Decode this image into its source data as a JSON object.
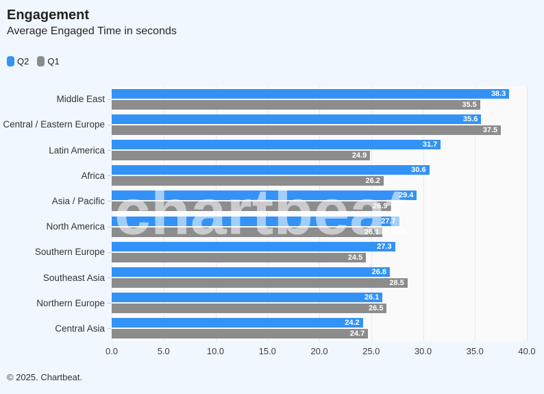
{
  "header": {
    "title": "Engagement",
    "subtitle": "Average Engaged Time in seconds"
  },
  "legend": [
    {
      "label": "Q2",
      "color": "#3392f5"
    },
    {
      "label": "Q1",
      "color": "#8c8c8d"
    }
  ],
  "watermark_text": "chartbeat",
  "footer": {
    "copyright": "© 2025. Chartbeat."
  },
  "colors": {
    "page_background": "#f0f7fe",
    "plot_background": "#fafafa",
    "gridline": "#e8e8e8",
    "q2_bar": "#3392f5",
    "q1_bar": "#8c8c8d",
    "bar_value_text": "#ffffff"
  },
  "chart_data": {
    "type": "bar",
    "orientation": "horizontal",
    "title": "Engagement",
    "subtitle": "Average Engaged Time in seconds",
    "categories": [
      "Middle East",
      "Central / Eastern Europe",
      "Latin America",
      "Africa",
      "Asia / Pacific",
      "North America",
      "Southern Europe",
      "Southeast Asia",
      "Northern Europe",
      "Central Asia"
    ],
    "series": [
      {
        "name": "Q2",
        "color": "#3392f5",
        "values": [
          38.3,
          35.6,
          31.7,
          30.6,
          29.4,
          27.7,
          27.3,
          26.8,
          26.1,
          24.2
        ]
      },
      {
        "name": "Q1",
        "color": "#8c8c8d",
        "values": [
          35.5,
          37.5,
          24.9,
          26.2,
          26.9,
          26.1,
          24.5,
          28.5,
          26.5,
          24.7
        ]
      }
    ],
    "xlim": [
      0,
      40
    ],
    "x_ticks": [
      0,
      5,
      10,
      15,
      20,
      25,
      30,
      35,
      40
    ],
    "tick_decimals": 1,
    "value_label_decimals": 1,
    "grid": true,
    "legend_position": "top-left"
  }
}
